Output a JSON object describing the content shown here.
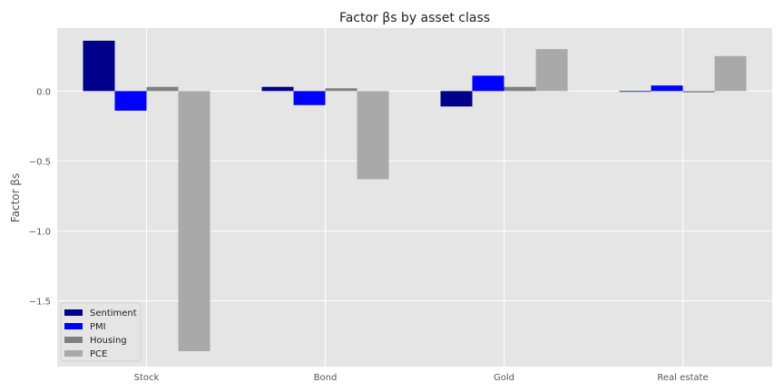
{
  "chart_data": {
    "type": "bar",
    "title": "Factor βs by asset class",
    "xlabel": "",
    "ylabel": "Factor βs",
    "categories": [
      "Stock",
      "Bond",
      "Gold",
      "Real estate"
    ],
    "series": [
      {
        "name": "Sentiment",
        "color": "#00008b",
        "values": [
          0.36,
          0.03,
          -0.11,
          0.0
        ]
      },
      {
        "name": "PMI",
        "color": "#0000ff",
        "values": [
          -0.14,
          -0.1,
          0.11,
          0.04
        ]
      },
      {
        "name": "Housing",
        "color": "#808080",
        "values": [
          0.03,
          0.02,
          0.03,
          -0.01
        ]
      },
      {
        "name": "PCE",
        "color": "#a9a9a9",
        "values": [
          -1.86,
          -0.63,
          0.3,
          0.25
        ]
      }
    ],
    "ylim": [
      -1.97,
      0.45
    ],
    "yticks": [
      0.0,
      -0.5,
      -1.0,
      -1.5
    ],
    "ytick_labels": [
      "0.0",
      "−0.5",
      "−1.0",
      "−1.5"
    ],
    "grid": true,
    "legend_position": "bottom-left",
    "background_color": "#e5e5e5",
    "grid_color": "#ffffff"
  }
}
